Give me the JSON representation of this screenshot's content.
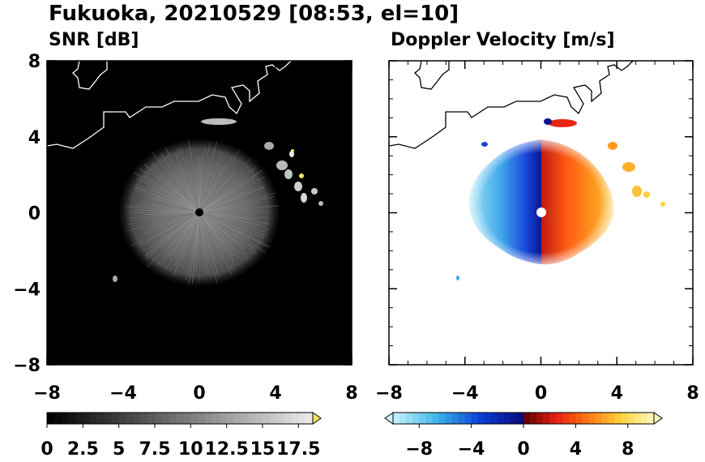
{
  "figure": {
    "title": "Fukuoka, 20210529 [08:53, el=10]"
  },
  "panels": [
    {
      "id": "snr",
      "title": "SNR [dB]",
      "background": "#000000",
      "coast_color": "#ffffff"
    },
    {
      "id": "doppler",
      "title": "Doppler Velocity [m/s]",
      "background": "#ffffff",
      "coast_color": "#000000"
    }
  ],
  "chart_data": [
    {
      "type": "heatmap",
      "title": "SNR [dB]",
      "x_range": [
        -8,
        8
      ],
      "y_range": [
        -8,
        8
      ],
      "x_ticks": [
        "−8",
        "−4",
        "0",
        "4",
        "8"
      ],
      "y_ticks": [
        "8",
        "4",
        "0",
        "−4",
        "−8"
      ],
      "radar_site": [
        0,
        0
      ],
      "echo_region_radius_km": 4.2,
      "colorbar": {
        "min": 0,
        "max": 18.5,
        "step": 0.5,
        "extend": "max",
        "tick_labels": [
          "0",
          "2.5",
          "5",
          "7.5",
          "10",
          "12.5",
          "15",
          "17.5"
        ],
        "tick_values": [
          0,
          2.5,
          5,
          7.5,
          10,
          12.5,
          15,
          17.5
        ],
        "low_color": "#000000",
        "high_color": "#e8e8e8",
        "extend_color": "#f5e663"
      }
    },
    {
      "type": "heatmap",
      "title": "Doppler Velocity [m/s]",
      "x_range": [
        -8,
        8
      ],
      "y_range": [
        -8,
        8
      ],
      "x_ticks": [
        "−8",
        "−4",
        "0",
        "4",
        "8"
      ],
      "y_ticks": [],
      "radar_site": [
        0,
        0
      ],
      "echo_region_radius_km": 4.2,
      "colorbar": {
        "min": -10,
        "max": 10,
        "step": 0.5,
        "extend": "both",
        "tick_labels": [
          "−8",
          "−4",
          "0",
          "4",
          "8"
        ],
        "tick_values": [
          -8,
          -4,
          0,
          4,
          8
        ],
        "negative_colors": [
          "#c8f4fb",
          "#3fb6ea",
          "#0a3fd6",
          "#080a7a"
        ],
        "positive_colors": [
          "#5a0000",
          "#e81e12",
          "#ff7a12",
          "#ffd23c",
          "#fff7c0"
        ]
      }
    }
  ]
}
